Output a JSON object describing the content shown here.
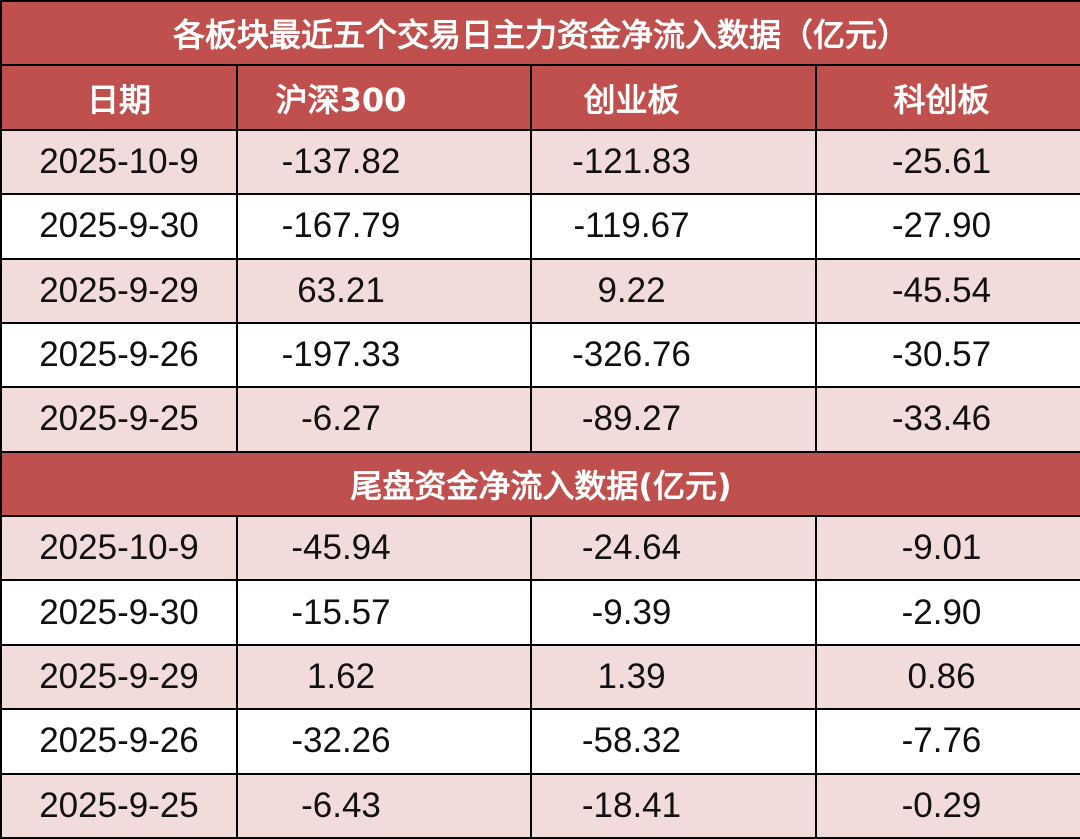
{
  "title": "各板块最近五个交易日主力资金净流入数据（亿元）",
  "headers": [
    "日期",
    "沪深300",
    "创业板",
    "科创板"
  ],
  "main_rows": [
    [
      "2025-10-9",
      "-137.82",
      "-121.83",
      "-25.61"
    ],
    [
      "2025-9-30",
      "-167.79",
      "-119.67",
      "-27.90"
    ],
    [
      "2025-9-29",
      "63.21",
      "9.22",
      "-45.54"
    ],
    [
      "2025-9-26",
      "-197.33",
      "-326.76",
      "-30.57"
    ],
    [
      "2025-9-25",
      "-6.27",
      "-89.27",
      "-33.46"
    ]
  ],
  "subtitle": "尾盘资金净流入数据(亿元)",
  "tail_rows": [
    [
      "2025-10-9",
      "-45.94",
      "-24.64",
      "-9.01"
    ],
    [
      "2025-9-30",
      "-15.57",
      "-9.39",
      "-2.90"
    ],
    [
      "2025-9-29",
      "1.62",
      "1.39",
      "0.86"
    ],
    [
      "2025-9-26",
      "-32.26",
      "-58.32",
      "-7.76"
    ],
    [
      "2025-9-25",
      "-6.43",
      "-18.41",
      "-0.29"
    ]
  ],
  "colors": {
    "header_bg": "#c0504d",
    "row_alt_bg": "#f2dcdb",
    "row_bg": "#ffffff"
  }
}
